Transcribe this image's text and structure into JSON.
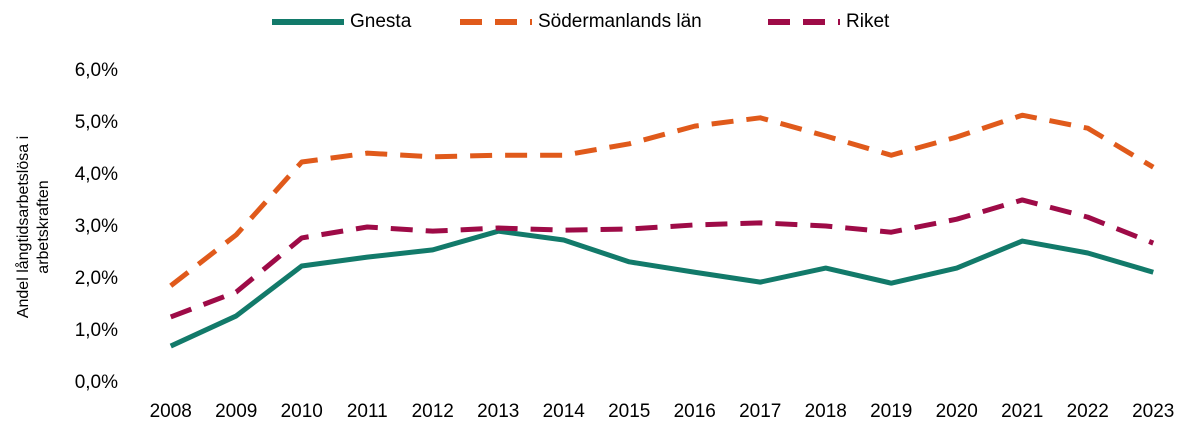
{
  "chart_data": {
    "type": "line",
    "ylabel": [
      "Andel långtidsarbetslösa i",
      "arbetskraften"
    ],
    "categories": [
      "2008",
      "2009",
      "2010",
      "2011",
      "2012",
      "2013",
      "2014",
      "2015",
      "2016",
      "2017",
      "2018",
      "2019",
      "2020",
      "2021",
      "2022",
      "2023"
    ],
    "series": [
      {
        "name": "Gnesta",
        "color": "#127a6a",
        "dash": false,
        "values": [
          0.71,
          1.29,
          2.25,
          2.42,
          2.56,
          2.92,
          2.75,
          2.33,
          2.13,
          1.94,
          2.21,
          1.92,
          2.21,
          2.73,
          2.5,
          2.13
        ]
      },
      {
        "name": "Södermanlands län",
        "color": "#e05a1b",
        "dash": true,
        "values": [
          1.87,
          2.85,
          4.25,
          4.42,
          4.35,
          4.38,
          4.38,
          4.6,
          4.94,
          5.1,
          4.75,
          4.38,
          4.73,
          5.15,
          4.9,
          4.15
        ]
      },
      {
        "name": "Riket",
        "color": "#9e0b47",
        "dash": true,
        "values": [
          1.27,
          1.75,
          2.79,
          3.0,
          2.92,
          2.98,
          2.94,
          2.96,
          3.04,
          3.08,
          3.02,
          2.9,
          3.15,
          3.52,
          3.19,
          2.69
        ]
      }
    ],
    "ylim": [
      0,
      6
    ],
    "yticks": [
      {
        "value": 0,
        "label": "0,0%"
      },
      {
        "value": 1,
        "label": "1,0%"
      },
      {
        "value": 2,
        "label": "2,0%"
      },
      {
        "value": 3,
        "label": "3,0%"
      },
      {
        "value": 4,
        "label": "4,0%"
      },
      {
        "value": 5,
        "label": "5,0%"
      },
      {
        "value": 6,
        "label": "6,0%"
      }
    ],
    "grid": false,
    "legend": "top"
  }
}
